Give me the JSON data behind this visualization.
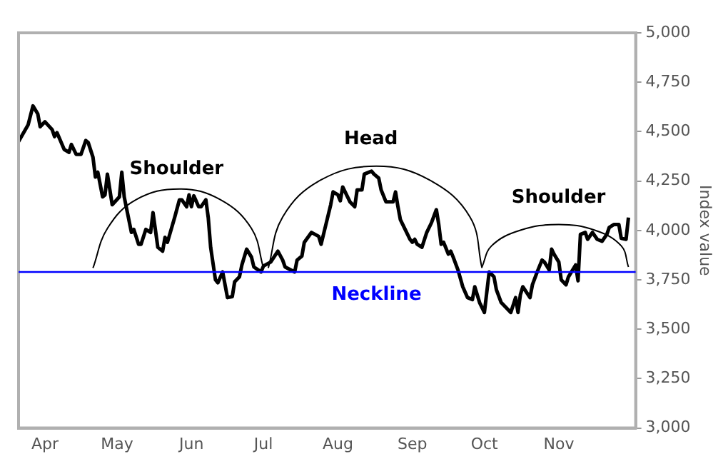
{
  "chart_data": {
    "type": "line",
    "ylabel": "Index value",
    "xlim": [
      "--03-21",
      "--12-03"
    ],
    "xticks": [
      {
        "value": "--04-01",
        "label": "Apr"
      },
      {
        "value": "--05-01",
        "label": "May"
      },
      {
        "value": "--06-01",
        "label": "Jun"
      },
      {
        "value": "--07-01",
        "label": "Jul"
      },
      {
        "value": "--08-01",
        "label": "Aug"
      },
      {
        "value": "--09-01",
        "label": "Sep"
      },
      {
        "value": "--10-01",
        "label": "Oct"
      },
      {
        "value": "--11-01",
        "label": "Nov"
      }
    ],
    "ylim": [
      3000,
      5000
    ],
    "yticks": [
      {
        "value": 3000,
        "label": "3,000"
      },
      {
        "value": 3250,
        "label": "3,250"
      },
      {
        "value": 3500,
        "label": "3,500"
      },
      {
        "value": 3750,
        "label": "3,750"
      },
      {
        "value": 4000,
        "label": "4,000"
      },
      {
        "value": 4250,
        "label": "4,250"
      },
      {
        "value": 4500,
        "label": "4,500"
      },
      {
        "value": 4750,
        "label": "4,750"
      },
      {
        "value": 5000,
        "label": "5,000"
      }
    ],
    "series": [
      {
        "color": "#000000",
        "x": [
          "--03-21",
          "--03-25",
          "--03-27",
          "--03-29",
          "--03-30",
          "--04-01",
          "--04-04",
          "--04-05",
          "--04-06",
          "--04-09",
          "--04-11",
          "--04-12",
          "--04-14",
          "--04-16",
          "--04-18",
          "--04-19",
          "--04-21",
          "--04-22",
          "--04-23",
          "--04-25",
          "--04-26",
          "--04-27",
          "--04-29",
          "--05-02",
          "--05-03",
          "--05-04",
          "--05-07",
          "--05-08",
          "--05-10",
          "--05-11",
          "--05-13",
          "--05-15",
          "--05-16",
          "--05-18",
          "--05-20",
          "--05-21",
          "--05-22",
          "--05-25",
          "--05-27",
          "--05-28",
          "--05-30",
          "--05-31",
          "--06-01",
          "--06-02",
          "--06-04",
          "--06-05",
          "--06-07",
          "--06-08",
          "--06-09",
          "--06-11",
          "--06-12",
          "--06-14",
          "--06-15",
          "--06-16",
          "--06-18",
          "--06-19",
          "--06-21",
          "--06-22",
          "--06-24",
          "--06-26",
          "--06-27",
          "--06-30",
          "--07-01",
          "--07-04",
          "--07-07",
          "--07-09",
          "--07-10",
          "--07-14",
          "--07-15",
          "--07-17",
          "--07-18",
          "--07-21",
          "--07-24",
          "--07-25",
          "--07-27",
          "--07-29",
          "--07-30",
          "--08-01",
          "--08-02",
          "--08-03",
          "--08-06",
          "--08-08",
          "--08-09",
          "--08-11",
          "--08-12",
          "--08-14",
          "--08-15",
          "--08-16",
          "--08-18",
          "--08-19",
          "--08-21",
          "--08-24",
          "--08-25",
          "--08-26",
          "--08-27",
          "--08-29",
          "--08-31",
          "--09-01",
          "--09-02",
          "--09-03",
          "--09-05",
          "--09-07",
          "--09-09",
          "--09-11",
          "--09-12",
          "--09-13",
          "--09-14",
          "--09-16",
          "--09-17",
          "--09-18",
          "--09-20",
          "--09-22",
          "--09-24",
          "--09-26",
          "--09-27",
          "--09-29",
          "--10-01",
          "--10-03",
          "--10-05",
          "--10-06",
          "--10-08",
          "--10-10",
          "--10-12",
          "--10-14",
          "--10-15",
          "--10-16",
          "--10-17",
          "--10-20",
          "--10-21",
          "--10-23",
          "--10-25",
          "--10-26",
          "--10-28",
          "--10-29",
          "--10-30",
          "--11-01",
          "--11-02",
          "--11-04",
          "--11-05",
          "--11-08",
          "--11-09",
          "--11-10",
          "--11-12",
          "--11-13",
          "--11-15",
          "--11-17",
          "--11-19",
          "--11-21",
          "--11-22",
          "--11-24",
          "--11-26",
          "--11-27",
          "--11-29",
          "--11-30"
        ],
        "values": [
          4450,
          4535,
          4630,
          4590,
          4525,
          4550,
          4510,
          4475,
          4495,
          4410,
          4395,
          4435,
          4385,
          4385,
          4455,
          4445,
          4370,
          4270,
          4295,
          4170,
          4180,
          4285,
          4130,
          4170,
          4295,
          4170,
          3990,
          4005,
          3930,
          3930,
          4005,
          3990,
          4090,
          3915,
          3895,
          3965,
          3940,
          4065,
          4155,
          4155,
          4120,
          4180,
          4120,
          4175,
          4120,
          4120,
          4155,
          4065,
          3915,
          3750,
          3735,
          3790,
          3725,
          3660,
          3665,
          3740,
          3765,
          3825,
          3905,
          3865,
          3815,
          3790,
          3820,
          3840,
          3895,
          3850,
          3815,
          3790,
          3850,
          3870,
          3940,
          3990,
          3970,
          3930,
          4030,
          4130,
          4195,
          4180,
          4150,
          4220,
          4145,
          4120,
          4205,
          4205,
          4285,
          4295,
          4300,
          4285,
          4265,
          4205,
          4145,
          4145,
          4195,
          4120,
          4055,
          4005,
          3955,
          3940,
          3955,
          3930,
          3915,
          3990,
          4040,
          4105,
          4030,
          3930,
          3940,
          3880,
          3895,
          3865,
          3800,
          3715,
          3660,
          3650,
          3715,
          3635,
          3585,
          3790,
          3765,
          3700,
          3635,
          3610,
          3585,
          3660,
          3585,
          3675,
          3715,
          3660,
          3725,
          3790,
          3850,
          3840,
          3800,
          3905,
          3880,
          3840,
          3750,
          3725,
          3765,
          3825,
          3745,
          3980,
          3990,
          3955,
          3990,
          3955,
          3945,
          3980,
          4015,
          4030,
          4030,
          3960,
          3955,
          4065
        ]
      },
      {
        "color": "#000000",
        "x": [
          "--04-21",
          "--04-27",
          "--05-09",
          "--05-27",
          "--06-13",
          "--06-26",
          "--07-01"
        ],
        "values": [
          3810,
          4010,
          4156,
          4210,
          4156,
          4010,
          3810
        ]
      },
      {
        "color": "#000000",
        "x": [
          "--07-03",
          "--07-09",
          "--07-25",
          "--08-17",
          "--09-08",
          "--09-25",
          "--09-30"
        ],
        "values": [
          3810,
          4068,
          4256,
          4325,
          4256,
          4068,
          3810
        ]
      },
      {
        "color": "#000000",
        "x": [
          "--09-30",
          "--10-04",
          "--10-16",
          "--11-01",
          "--11-16",
          "--11-27",
          "--11-30"
        ],
        "values": [
          3815,
          3922,
          4001,
          4030,
          4001,
          3922,
          3815
        ]
      }
    ],
    "ref_lines": [
      {
        "axis": "y",
        "value": 3790,
        "label": "Neckline",
        "color": "#0000ff"
      }
    ],
    "annotations": [
      "Shoulder",
      "Head",
      "Shoulder"
    ],
    "legend": false
  }
}
